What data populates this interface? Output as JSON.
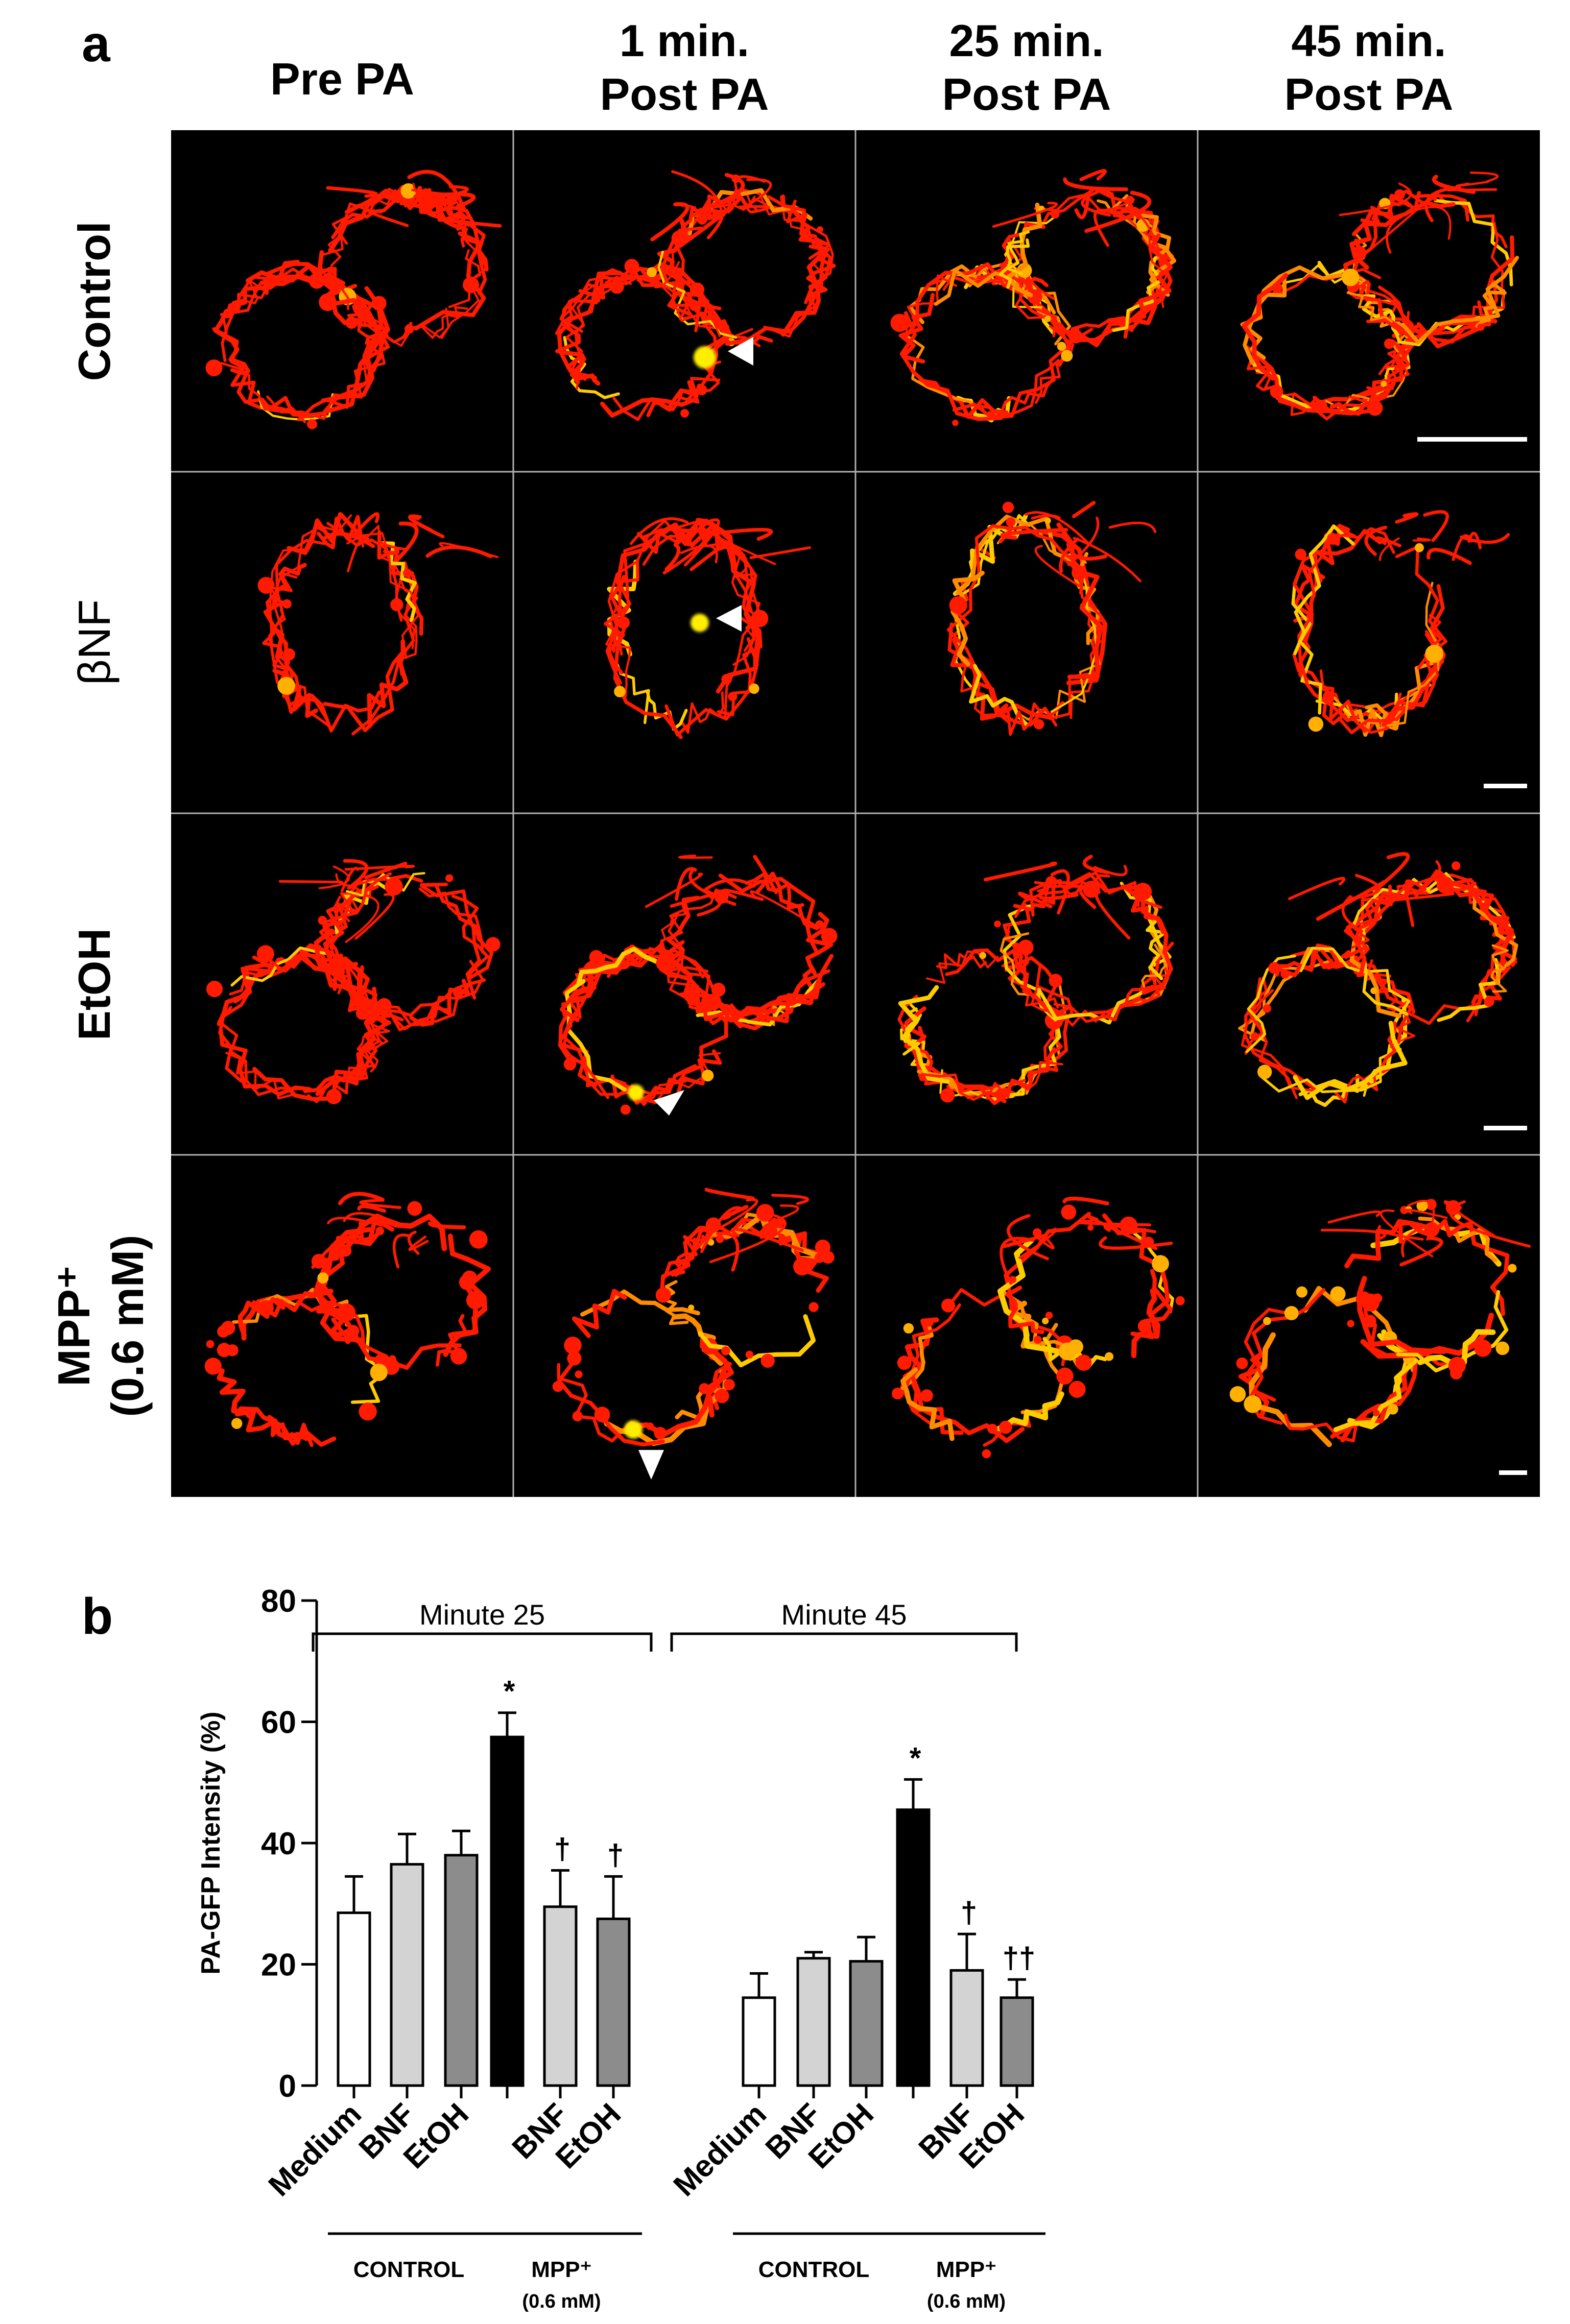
{
  "panel_a": {
    "label": "a",
    "columns": [
      "Pre PA",
      "1 min.|Post PA",
      "25 min.|Post PA",
      "45 min.|Post PA"
    ],
    "rows": [
      "Control",
      "βNF",
      "EtOH",
      "MPP⁺|(0.6 mM)"
    ]
  },
  "chart_data": {
    "type": "bar",
    "panel_label": "b",
    "ylabel": "PA-GFP Intensity (%)",
    "ylim": [
      0,
      80
    ],
    "yticks": [
      0,
      20,
      40,
      60,
      80
    ],
    "groups": [
      {
        "label": "Minute 25",
        "bars": [
          {
            "label": "Medium",
            "value": 28.5,
            "error": 6.0,
            "color": "#ffffff",
            "annotation": ""
          },
          {
            "label": "BNF",
            "value": 36.5,
            "error": 5.0,
            "color": "#d3d3d3",
            "annotation": ""
          },
          {
            "label": "EtOH",
            "value": 38.0,
            "error": 4.0,
            "color": "#8c8c8c",
            "annotation": ""
          },
          {
            "label": "",
            "value": 57.5,
            "error": 4.0,
            "color": "#000000",
            "annotation": "*"
          },
          {
            "label": "BNF",
            "value": 29.5,
            "error": 6.0,
            "color": "#d3d3d3",
            "annotation": "†"
          },
          {
            "label": "EtOH",
            "value": 27.5,
            "error": 7.0,
            "color": "#8c8c8c",
            "annotation": "†"
          }
        ],
        "subgroups": [
          "CONTROL",
          "MPP⁺|(0.6 mM)"
        ]
      },
      {
        "label": "Minute 45",
        "bars": [
          {
            "label": "Medium",
            "value": 14.5,
            "error": 4.0,
            "color": "#ffffff",
            "annotation": ""
          },
          {
            "label": "BNF",
            "value": 21.0,
            "error": 1.0,
            "color": "#d3d3d3",
            "annotation": ""
          },
          {
            "label": "EtOH",
            "value": 20.5,
            "error": 4.0,
            "color": "#8c8c8c",
            "annotation": ""
          },
          {
            "label": "",
            "value": 45.5,
            "error": 5.0,
            "color": "#000000",
            "annotation": "*"
          },
          {
            "label": "BNF",
            "value": 19.0,
            "error": 6.0,
            "color": "#d3d3d3",
            "annotation": "†"
          },
          {
            "label": "EtOH",
            "value": 14.5,
            "error": 3.0,
            "color": "#8c8c8c",
            "annotation": "††"
          }
        ],
        "subgroups": [
          "CONTROL",
          "MPP⁺|(0.6 mM)"
        ]
      }
    ]
  }
}
